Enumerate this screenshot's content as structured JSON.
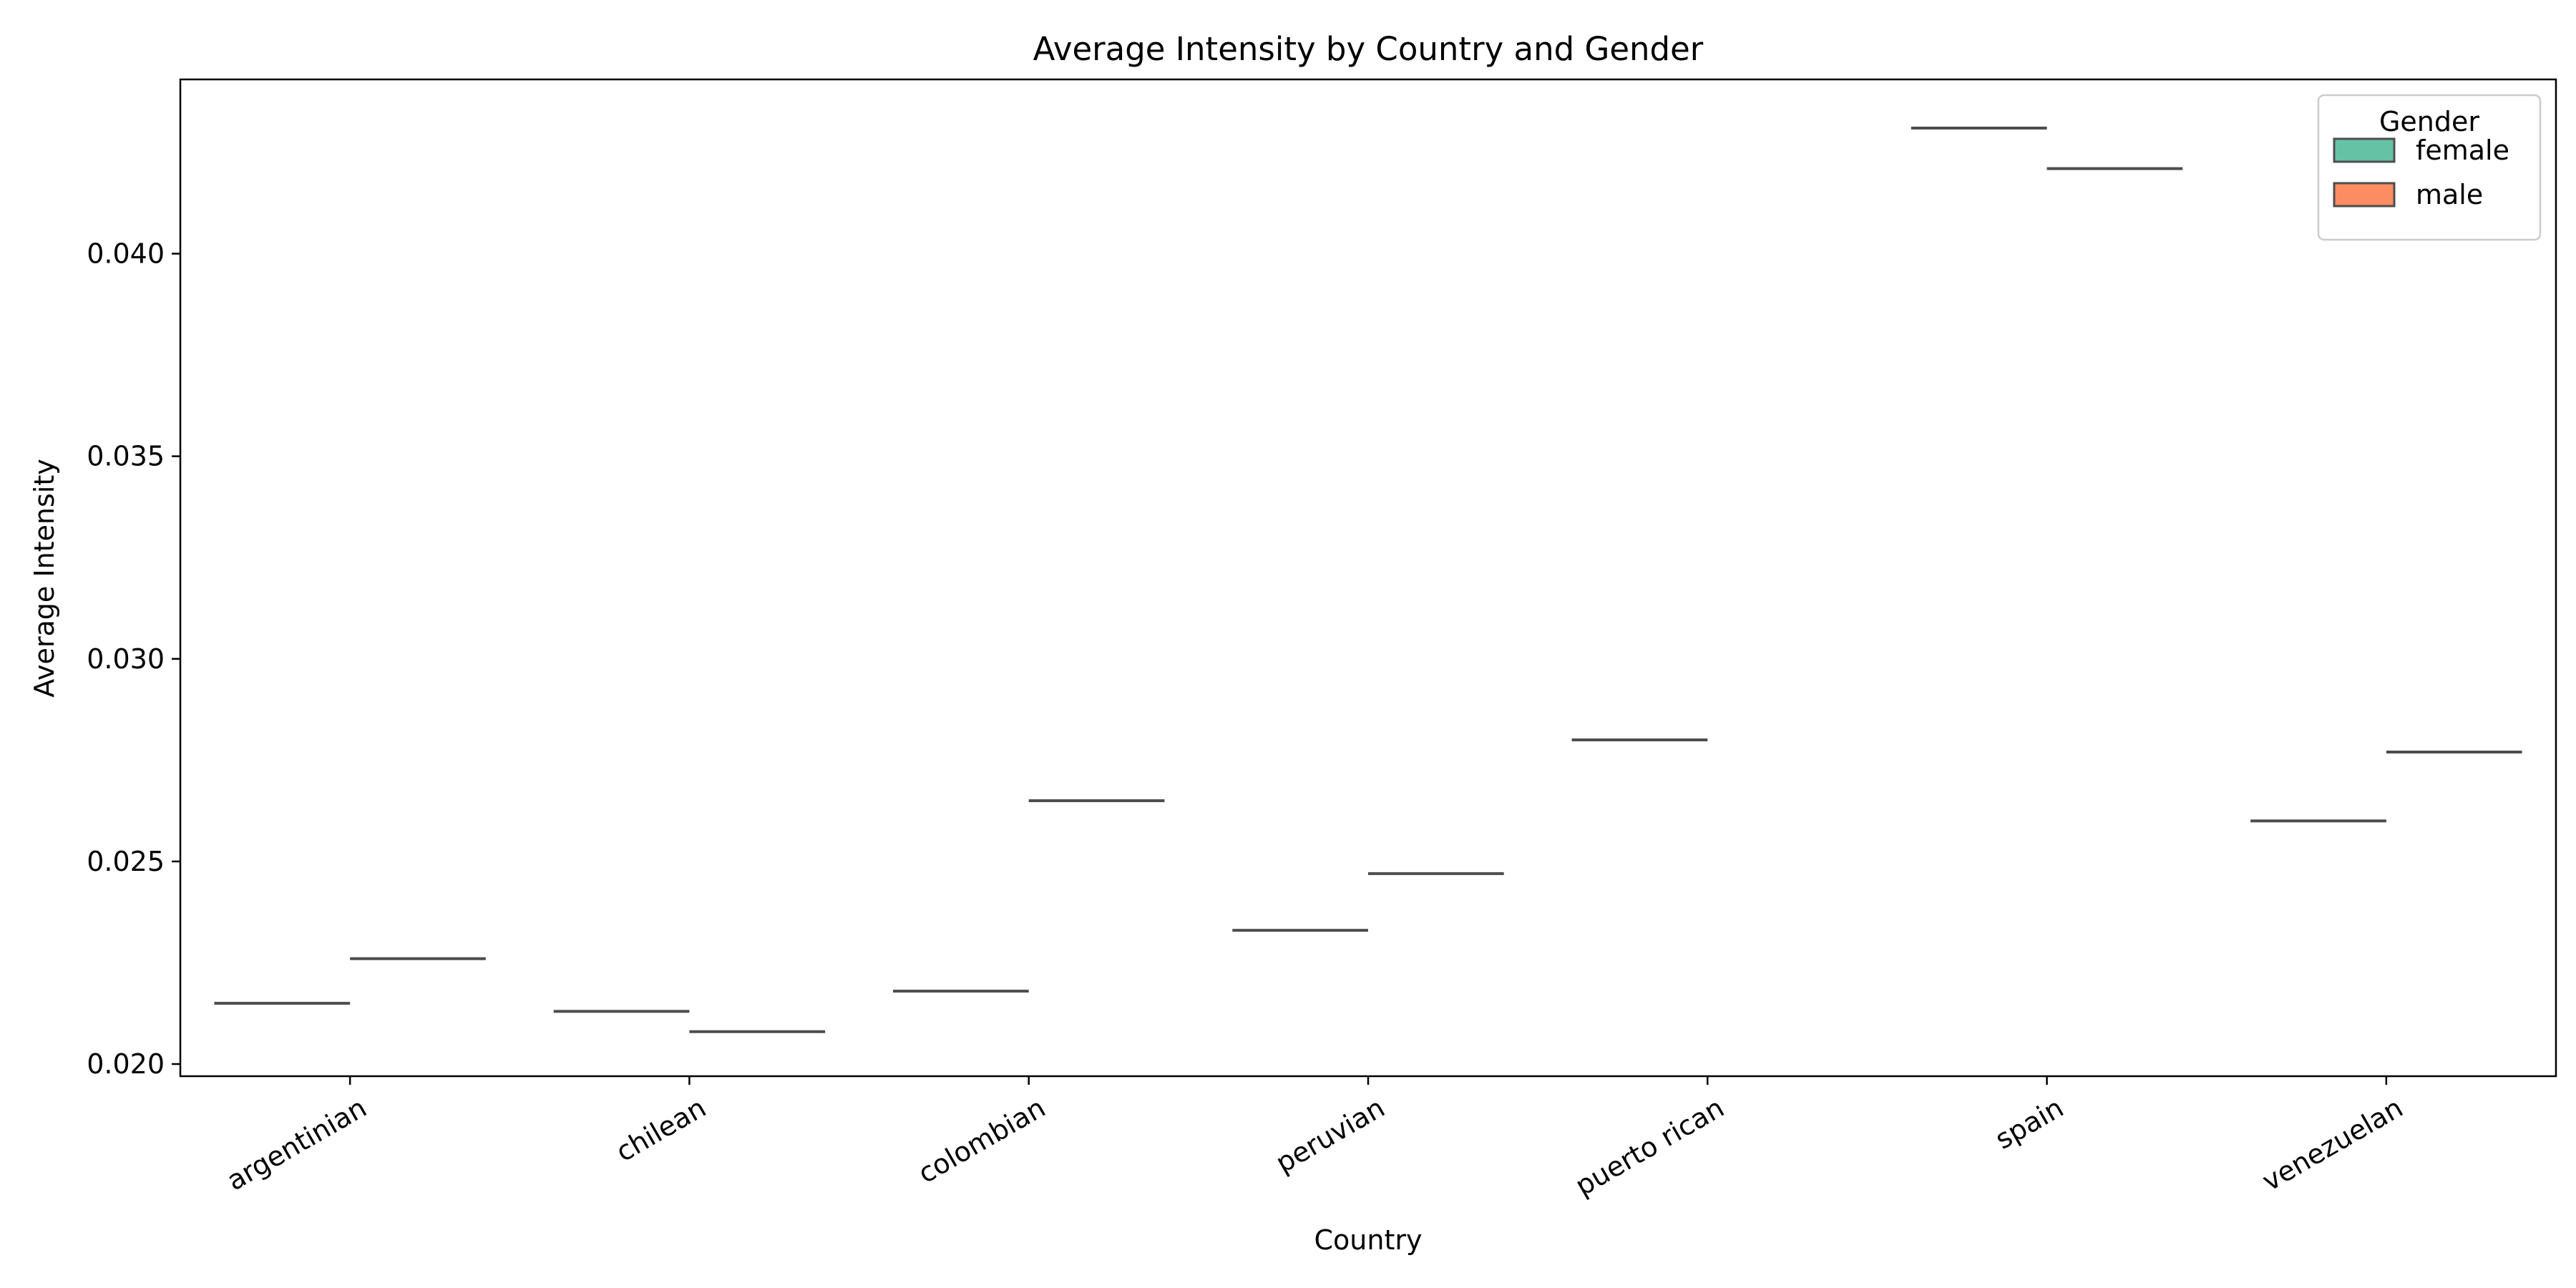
{
  "chart_data": {
    "type": "bar",
    "title": "Average Intensity by Country and Gender",
    "xlabel": "Country",
    "ylabel": "Average Intensity",
    "categories": [
      "argentinian",
      "chilean",
      "colombian",
      "peruvian",
      "puerto rican",
      "spain",
      "venezuelan"
    ],
    "series": [
      {
        "name": "female",
        "color": "#66c2a5",
        "values": [
          0.0215,
          0.0213,
          0.0218,
          0.0233,
          0.028,
          0.0431,
          0.026
        ]
      },
      {
        "name": "male",
        "color": "#fc8d62",
        "values": [
          0.0226,
          0.0208,
          0.0265,
          0.0247,
          null,
          0.0421,
          0.0277
        ]
      }
    ],
    "ylim": [
      0.0197,
      0.0443
    ],
    "yticks": [
      "0.020",
      "0.025",
      "0.030",
      "0.035",
      "0.040"
    ],
    "grid": false,
    "legend": {
      "title": "Gender",
      "placement": "top-right"
    }
  }
}
